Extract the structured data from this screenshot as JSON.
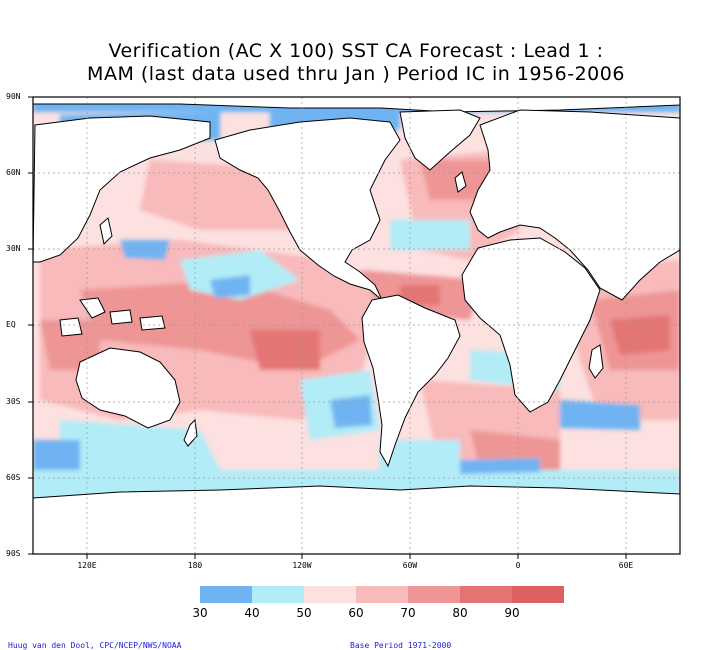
{
  "title": {
    "line1": "Verification (AC X 100) SST CA Forecast : Lead 1 :",
    "line2": "MAM (last data used thru Jan ) Period IC in 1956-2006"
  },
  "lat_labels": [
    "90N",
    "60N",
    "30N",
    "EQ",
    "30S",
    "60S",
    "90S"
  ],
  "lon_labels": [
    "120E",
    "180",
    "120W",
    "60W",
    "0",
    "60E"
  ],
  "colorbar": {
    "ticks": [
      "30",
      "40",
      "50",
      "60",
      "70",
      "80",
      "90"
    ],
    "colors": [
      "#6fb3f2",
      "#b2ecf7",
      "#fde0e0",
      "#f8baba",
      "#ee9595",
      "#e47474",
      "#dc6060"
    ]
  },
  "credits": {
    "left": "Huug van den Dool, CPC/NCEP/NWS/NOAA",
    "right": "Base Period 1971-2000"
  },
  "colors": {
    "land": "#ffffff",
    "coast": "#000000",
    "grid": "#9a9a9a"
  }
}
